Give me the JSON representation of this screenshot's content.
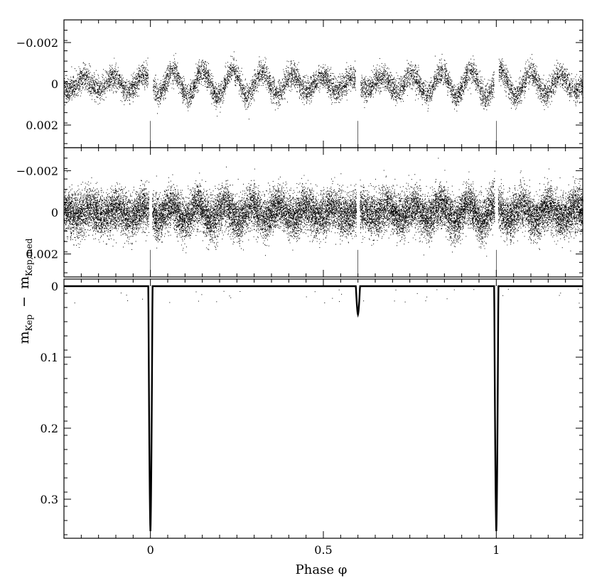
{
  "chart_data": [
    {
      "panel": "top",
      "type": "scatter",
      "description_of_series": "out-of-eclipse residual light curve showing a quasi-periodic sinusoidal modulation",
      "xlim": [
        -0.25,
        1.25
      ],
      "ylim": [
        0.0031,
        -0.0031
      ],
      "inverted_y": true,
      "y_ticks": [
        -0.002,
        0,
        0.002
      ],
      "y_tick_labels": [
        "−0.002",
        "0",
        "0.002"
      ],
      "x_tick_labels": [],
      "amplitude": 0.0006,
      "modulation_cycles_per_phase": 11.6,
      "scatter_sigma": 0.00035,
      "eclipse_gaps": [
        0.0,
        0.6,
        1.0
      ],
      "gap_halfwidth": 0.007,
      "points": 9000
    },
    {
      "panel": "middle",
      "type": "scatter",
      "description_of_series": "out-of-eclipse residuals, higher noise",
      "xlim": [
        -0.25,
        1.25
      ],
      "ylim": [
        0.0031,
        -0.0031
      ],
      "inverted_y": true,
      "y_ticks": [
        -0.002,
        0,
        0.002
      ],
      "y_tick_labels": [
        "−0.002",
        "0",
        "0.002"
      ],
      "x_tick_labels": [],
      "amplitude": 0.00035,
      "modulation_cycles_per_phase": 12.8,
      "scatter_sigma": 0.0006,
      "eclipse_gaps": [
        0.0,
        0.6,
        1.0
      ],
      "gap_halfwidth": 0.005,
      "points": 22000
    },
    {
      "panel": "bottom",
      "type": "line",
      "description_of_series": "full phased light curve with primary and secondary eclipses",
      "xlim": [
        -0.25,
        1.25
      ],
      "ylim": [
        0.355,
        -0.01
      ],
      "inverted_y": true,
      "y_ticks": [
        0,
        0.1,
        0.2,
        0.3
      ],
      "y_tick_labels": [
        "0",
        "0.1",
        "0.2",
        "0.3"
      ],
      "x_ticks": [
        0,
        0.5,
        1
      ],
      "x_tick_labels": [
        "0",
        "0.5",
        "1"
      ],
      "eclipses": [
        {
          "phase": 0.0,
          "depth": 0.345,
          "halfwidth": 0.006
        },
        {
          "phase": 0.6,
          "depth": 0.04,
          "halfwidth": 0.006
        },
        {
          "phase": 1.0,
          "depth": 0.345,
          "halfwidth": 0.006
        }
      ]
    }
  ],
  "xlabel": "Phase φ",
  "ylabel_main": "m",
  "ylabel_sub1": "Kep",
  "ylabel_sep": "−",
  "ylabel_main2": "m",
  "ylabel_sub2": "Kep,med"
}
